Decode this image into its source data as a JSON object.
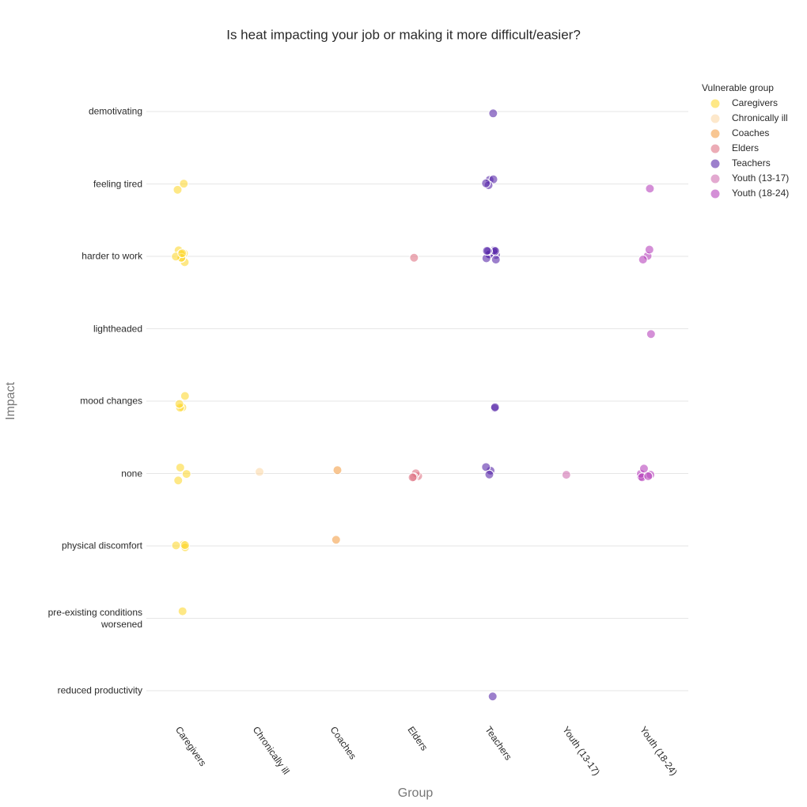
{
  "chart_data": {
    "type": "strip",
    "title": "Is heat impacting your job or making it more difficult/easier?",
    "x_label": "Group",
    "y_label": "Impact",
    "legend_title": "Vulnerable group",
    "x_categories": [
      "Caregivers",
      "Chronically ill",
      "Coaches",
      "Elders",
      "Teachers",
      "Youth (13-17)",
      "Youth (18-24)"
    ],
    "y_categories": [
      "demotivating",
      "feeling tired",
      "harder to work",
      "lightheaded",
      "mood changes",
      "none",
      "physical discomfort",
      "pre-existing conditions worsened",
      "reduced productivity"
    ],
    "grid": true,
    "series": [
      {
        "name": "Caregivers",
        "color": "#fdd835",
        "x": [
          "Caregivers",
          "Caregivers",
          "Caregivers",
          "Caregivers",
          "Caregivers",
          "Caregivers",
          "Caregivers",
          "Caregivers",
          "Caregivers",
          "Caregivers",
          "Caregivers",
          "Caregivers",
          "Caregivers",
          "Caregivers",
          "Caregivers",
          "Caregivers",
          "Caregivers",
          "Caregivers",
          "Caregivers",
          "Caregivers",
          "Caregivers",
          "Caregivers",
          "Caregivers",
          "Caregivers"
        ],
        "y": [
          "feeling tired",
          "feeling tired",
          "harder to work",
          "harder to work",
          "harder to work",
          "harder to work",
          "harder to work",
          "harder to work",
          "harder to work",
          "harder to work",
          "harder to work",
          "harder to work",
          "mood changes",
          "mood changes",
          "mood changes",
          "mood changes",
          "none",
          "none",
          "none",
          "physical discomfort",
          "physical discomfort",
          "physical discomfort",
          "physical discomfort",
          "pre-existing conditions worsened"
        ]
      },
      {
        "name": "Chronically ill",
        "color": "#fcd9a8",
        "x": [
          "Chronically ill"
        ],
        "y": [
          "none"
        ]
      },
      {
        "name": "Coaches",
        "color": "#f4a04a",
        "x": [
          "Coaches",
          "Coaches"
        ],
        "y": [
          "none",
          "physical discomfort"
        ]
      },
      {
        "name": "Elders",
        "color": "#e07585",
        "x": [
          "Elders",
          "Elders",
          "Elders",
          "Elders",
          "Elders"
        ],
        "y": [
          "harder to work",
          "none",
          "none",
          "none",
          "none"
        ]
      },
      {
        "name": "Teachers",
        "color": "#5a2aaa",
        "x": [
          "Teachers",
          "Teachers",
          "Teachers",
          "Teachers",
          "Teachers",
          "Teachers",
          "Teachers",
          "Teachers",
          "Teachers",
          "Teachers",
          "Teachers",
          "Teachers",
          "Teachers",
          "Teachers",
          "Teachers",
          "Teachers",
          "Teachers",
          "Teachers",
          "Teachers",
          "Teachers",
          "Teachers",
          "Teachers",
          "Teachers"
        ],
        "y": [
          "demotivating",
          "feeling tired",
          "feeling tired",
          "feeling tired",
          "feeling tired",
          "harder to work",
          "harder to work",
          "harder to work",
          "harder to work",
          "harder to work",
          "harder to work",
          "harder to work",
          "harder to work",
          "harder to work",
          "harder to work",
          "harder to work",
          "harder to work",
          "mood changes",
          "mood changes",
          "none",
          "none",
          "none",
          "reduced productivity"
        ]
      },
      {
        "name": "Youth (13-17)",
        "color": "#d070b0",
        "x": [
          "Youth (13-17)"
        ],
        "y": [
          "none"
        ]
      },
      {
        "name": "Youth (18-24)",
        "color": "#b845bd",
        "x": [
          "Youth (18-24)",
          "Youth (18-24)",
          "Youth (18-24)",
          "Youth (18-24)",
          "Youth (18-24)",
          "Youth (18-24)",
          "Youth (18-24)",
          "Youth (18-24)",
          "Youth (18-24)",
          "Youth (18-24)",
          "Youth (18-24)"
        ],
        "y": [
          "feeling tired",
          "harder to work",
          "harder to work",
          "harder to work",
          "lightheaded",
          "none",
          "none",
          "none",
          "none",
          "none",
          "none"
        ]
      }
    ]
  }
}
